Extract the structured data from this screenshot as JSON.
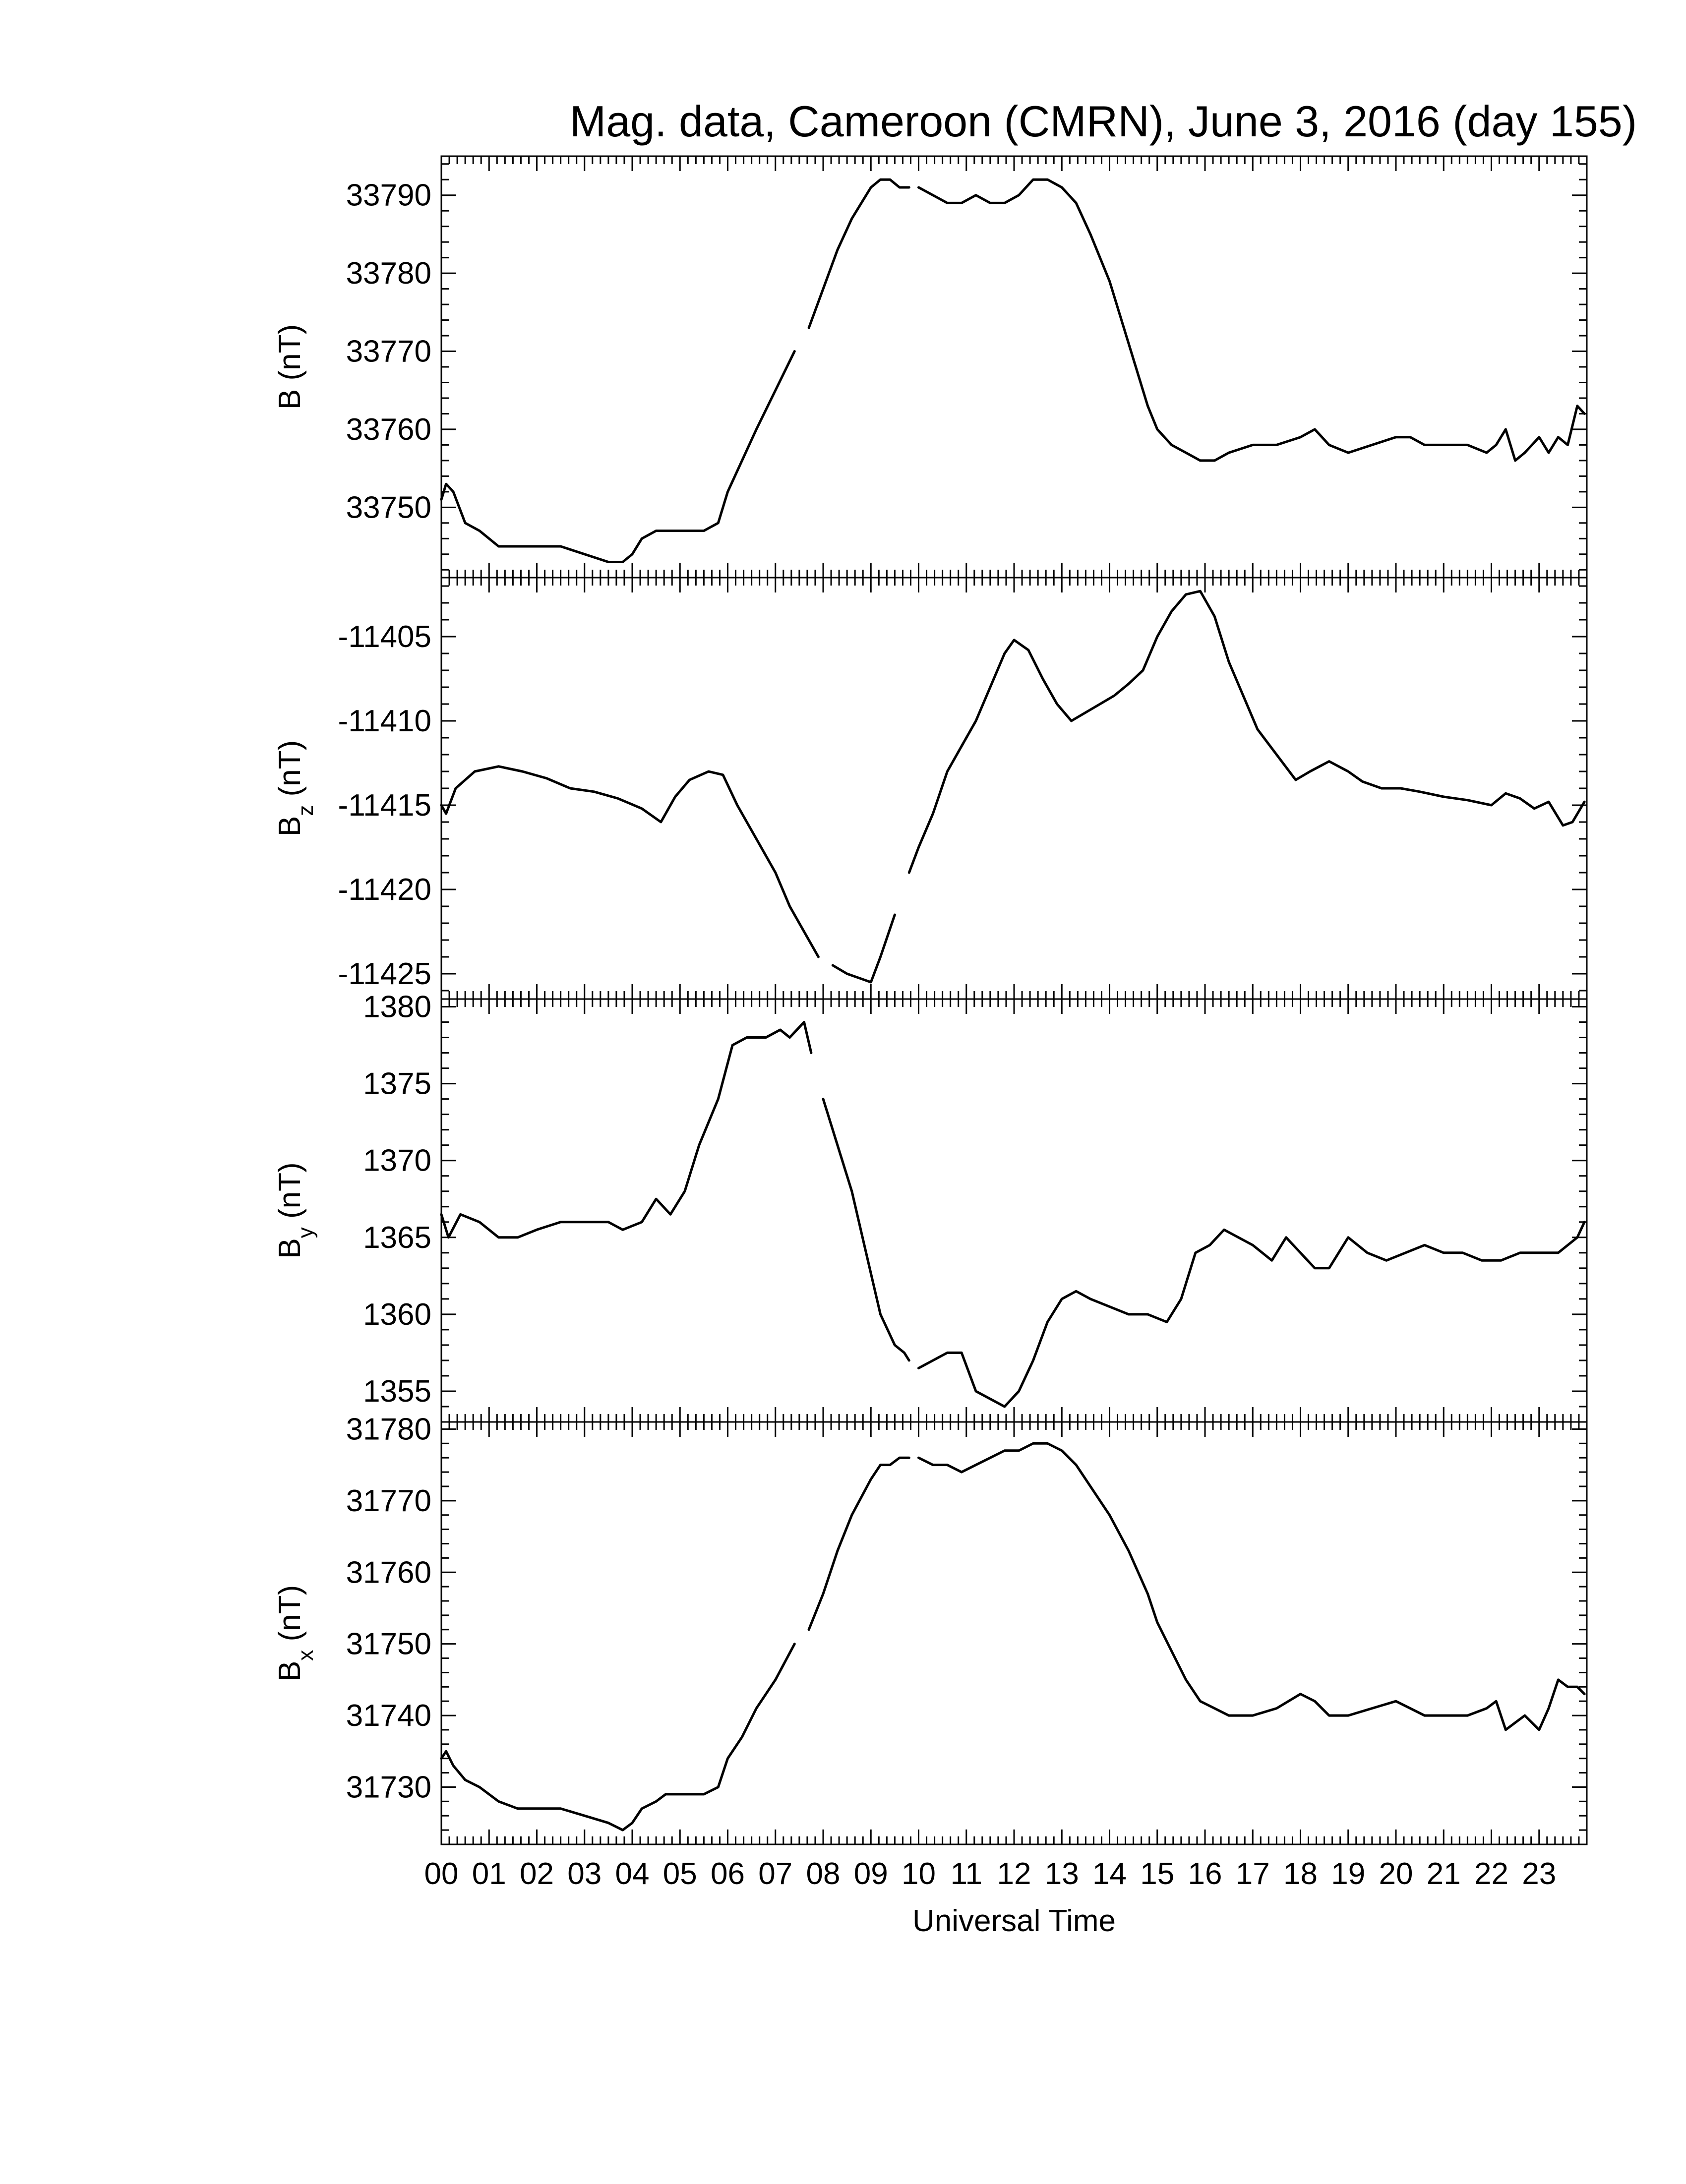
{
  "chart_data": {
    "type": "line",
    "title": "Mag. data, Cameroon (CMRN), June 3, 2016 (day 155)",
    "xlabel": "Universal Time",
    "x_ticks": [
      "00",
      "01",
      "02",
      "03",
      "04",
      "05",
      "06",
      "07",
      "08",
      "09",
      "10",
      "11",
      "12",
      "13",
      "14",
      "15",
      "16",
      "17",
      "18",
      "19",
      "20",
      "21",
      "22",
      "23"
    ],
    "xlim": [
      0,
      24
    ],
    "line_color": "#000000",
    "panels": [
      {
        "name": "B",
        "ylabel": "B (nT)",
        "ylabel_main": "B",
        "ylabel_sub": "",
        "ylabel_unit": " (nT)",
        "ylim": [
          33741,
          33795
        ],
        "yticks": [
          "33750",
          "33760",
          "33770",
          "33780",
          "33790"
        ],
        "x": [
          0,
          0.1,
          0.25,
          0.5,
          0.8,
          1.2,
          1.6,
          2.0,
          2.5,
          3.0,
          3.5,
          3.8,
          4.0,
          4.2,
          4.5,
          4.7,
          5.0,
          5.5,
          5.8,
          6.0,
          6.3,
          6.6,
          7.0,
          7.4,
          7.7,
          8.0,
          8.3,
          8.6,
          9.0,
          9.2,
          9.4,
          9.6,
          9.8,
          10.0,
          10.3,
          10.6,
          10.9,
          11.2,
          11.5,
          11.8,
          12.1,
          12.4,
          12.7,
          13.0,
          13.3,
          13.6,
          14.0,
          14.4,
          14.8,
          15.0,
          15.3,
          15.6,
          15.9,
          16.2,
          16.5,
          17.0,
          17.5,
          18.0,
          18.3,
          18.6,
          19.0,
          19.5,
          20.0,
          20.3,
          20.6,
          21.0,
          21.5,
          21.9,
          22.1,
          22.3,
          22.5,
          22.7,
          23.0,
          23.2,
          23.4,
          23.6,
          23.8,
          23.95
        ],
        "y": [
          33751,
          33753,
          33752,
          33748,
          33747,
          33745,
          33745,
          33745,
          33745,
          33744,
          33743,
          33743,
          33744,
          33746,
          33747,
          33747,
          33747,
          33747,
          33748,
          33752,
          33756,
          33760,
          33765,
          33770,
          33773,
          33778,
          33783,
          33787,
          33791,
          33792,
          33792,
          33791,
          33791,
          33791,
          33790,
          33789,
          33789,
          33790,
          33789,
          33789,
          33790,
          33792,
          33792,
          33791,
          33789,
          33785,
          33779,
          33771,
          33763,
          33760,
          33758,
          33757,
          33756,
          33756,
          33757,
          33758,
          33758,
          33759,
          33760,
          33758,
          33757,
          33758,
          33759,
          33759,
          33758,
          33758,
          33758,
          33757,
          33758,
          33760,
          33756,
          33757,
          33759,
          33757,
          33759,
          33758,
          33763,
          33762
        ],
        "gaps_after_x": [
          7.4,
          9.8
        ]
      },
      {
        "name": "Bz",
        "ylabel": "Bz (nT)",
        "ylabel_main": "B",
        "ylabel_sub": "z",
        "ylabel_unit": " (nT)",
        "ylim": [
          -11426.5,
          -11401.5
        ],
        "yticks": [
          "-11405",
          "-11410",
          "-11415",
          "-11420",
          "-11425"
        ],
        "x": [
          0,
          0.1,
          0.3,
          0.7,
          1.2,
          1.7,
          2.2,
          2.7,
          3.2,
          3.7,
          4.2,
          4.6,
          4.9,
          5.2,
          5.6,
          5.9,
          6.2,
          6.6,
          7.0,
          7.3,
          7.6,
          7.9,
          8.2,
          8.5,
          8.8,
          9.0,
          9.2,
          9.5,
          9.8,
          10.0,
          10.3,
          10.6,
          10.9,
          11.2,
          11.5,
          11.8,
          12.0,
          12.3,
          12.6,
          12.9,
          13.2,
          13.5,
          13.8,
          14.1,
          14.4,
          14.7,
          15.0,
          15.3,
          15.6,
          15.9,
          16.2,
          16.5,
          16.8,
          17.1,
          17.5,
          17.9,
          18.2,
          18.6,
          19.0,
          19.3,
          19.7,
          20.1,
          20.5,
          21.0,
          21.5,
          22.0,
          22.3,
          22.6,
          22.9,
          23.2,
          23.5,
          23.7,
          23.95
        ],
        "y": [
          -11415,
          -11415.5,
          -11414,
          -11413,
          -11412.7,
          -11413,
          -11413.4,
          -11414,
          -11414.2,
          -11414.6,
          -11415.2,
          -11416,
          -11414.5,
          -11413.5,
          -11413,
          -11413.2,
          -11415,
          -11417,
          -11419,
          -11421,
          -11422.5,
          -11424,
          -11424.5,
          -11425,
          -11425.3,
          -11425.5,
          -11424,
          -11421.5,
          -11419,
          -11417.5,
          -11415.5,
          -11413,
          -11411.5,
          -11410,
          -11408,
          -11406,
          -11405.2,
          -11405.8,
          -11407.5,
          -11409,
          -11410,
          -11409.5,
          -11409,
          -11408.5,
          -11407.8,
          -11407,
          -11405,
          -11403.5,
          -11402.5,
          -11402.3,
          -11403.8,
          -11406.5,
          -11408.5,
          -11410.5,
          -11412,
          -11413.5,
          -11413,
          -11412.4,
          -11413,
          -11413.6,
          -11414,
          -11414,
          -11414.2,
          -11414.5,
          -11414.7,
          -11415,
          -11414.3,
          -11414.6,
          -11415.2,
          -11414.8,
          -11416.2,
          -11416,
          -11414.8
        ],
        "gaps_after_x": [
          7.9,
          9.5
        ]
      },
      {
        "name": "By",
        "ylabel": "By (nT)",
        "ylabel_main": "B",
        "ylabel_sub": "y",
        "ylabel_unit": " (nT)",
        "ylim": [
          1353,
          1380.5
        ],
        "yticks": [
          "1355",
          "1360",
          "1365",
          "1370",
          "1375",
          "1380"
        ],
        "x": [
          0,
          0.15,
          0.4,
          0.8,
          1.2,
          1.6,
          2.0,
          2.5,
          3.0,
          3.5,
          3.8,
          4.2,
          4.5,
          4.8,
          5.1,
          5.4,
          5.8,
          6.1,
          6.4,
          6.8,
          7.1,
          7.3,
          7.6,
          7.75,
          8.0,
          8.3,
          8.6,
          8.9,
          9.2,
          9.5,
          9.7,
          9.8,
          10.0,
          10.3,
          10.6,
          10.9,
          11.2,
          11.5,
          11.8,
          12.1,
          12.4,
          12.7,
          13.0,
          13.3,
          13.6,
          14.0,
          14.4,
          14.8,
          15.2,
          15.5,
          15.8,
          16.1,
          16.4,
          16.7,
          17.0,
          17.4,
          17.7,
          18.0,
          18.3,
          18.6,
          19.0,
          19.4,
          19.8,
          20.2,
          20.6,
          21.0,
          21.4,
          21.8,
          22.2,
          22.6,
          23.0,
          23.4,
          23.8,
          23.95
        ],
        "y": [
          1366.5,
          1365,
          1366.5,
          1366,
          1365,
          1365,
          1365.5,
          1366,
          1366,
          1366,
          1365.5,
          1366,
          1367.5,
          1366.5,
          1368,
          1371,
          1374,
          1377.5,
          1378,
          1378,
          1378.5,
          1378,
          1379,
          1377,
          1374,
          1371,
          1368,
          1364,
          1360,
          1358,
          1357.5,
          1357,
          1356.5,
          1357,
          1357.5,
          1357.5,
          1355,
          1354.5,
          1354,
          1355,
          1357,
          1359.5,
          1361,
          1361.5,
          1361,
          1360.5,
          1360,
          1360,
          1359.5,
          1361,
          1364,
          1364.5,
          1365.5,
          1365,
          1364.5,
          1363.5,
          1365,
          1364,
          1363,
          1363,
          1365,
          1364,
          1363.5,
          1364,
          1364.5,
          1364,
          1364,
          1363.5,
          1363.5,
          1364,
          1364,
          1364,
          1365,
          1366
        ],
        "gaps_after_x": [
          7.75,
          9.8
        ]
      },
      {
        "name": "Bx",
        "ylabel": "Bx (nT)",
        "ylabel_main": "B",
        "ylabel_sub": "x",
        "ylabel_unit": " (nT)",
        "ylim": [
          31722,
          31781
        ],
        "yticks": [
          "31730",
          "31740",
          "31750",
          "31760",
          "31770",
          "31780"
        ],
        "x": [
          0,
          0.1,
          0.25,
          0.5,
          0.8,
          1.2,
          1.6,
          2.0,
          2.5,
          3.0,
          3.5,
          3.8,
          4.0,
          4.2,
          4.5,
          4.7,
          5.0,
          5.5,
          5.8,
          6.0,
          6.3,
          6.6,
          7.0,
          7.4,
          7.7,
          8.0,
          8.3,
          8.6,
          9.0,
          9.2,
          9.4,
          9.6,
          9.8,
          10.0,
          10.3,
          10.6,
          10.9,
          11.2,
          11.5,
          11.8,
          12.1,
          12.4,
          12.7,
          13.0,
          13.3,
          13.6,
          14.0,
          14.4,
          14.8,
          15.0,
          15.3,
          15.6,
          15.9,
          16.2,
          16.5,
          17.0,
          17.5,
          18.0,
          18.3,
          18.6,
          19.0,
          19.5,
          20.0,
          20.3,
          20.6,
          21.0,
          21.5,
          21.9,
          22.1,
          22.3,
          22.5,
          22.7,
          23.0,
          23.2,
          23.4,
          23.6,
          23.8,
          23.95
        ],
        "y": [
          31734,
          31735,
          31733,
          31731,
          31730,
          31728,
          31727,
          31727,
          31727,
          31726,
          31725,
          31724,
          31725,
          31727,
          31728,
          31729,
          31729,
          31729,
          31730,
          31734,
          31737,
          31741,
          31745,
          31750,
          31752,
          31757,
          31763,
          31768,
          31773,
          31775,
          31775,
          31776,
          31776,
          31776,
          31775,
          31775,
          31774,
          31775,
          31776,
          31777,
          31777,
          31778,
          31778,
          31777,
          31775,
          31772,
          31768,
          31763,
          31757,
          31753,
          31749,
          31745,
          31742,
          31741,
          31740,
          31740,
          31741,
          31743,
          31742,
          31740,
          31740,
          31741,
          31742,
          31741,
          31740,
          31740,
          31740,
          31741,
          31742,
          31738,
          31739,
          31740,
          31738,
          31741,
          31745,
          31744,
          31744,
          31743
        ],
        "gaps_after_x": [
          7.4,
          9.8
        ]
      }
    ]
  }
}
